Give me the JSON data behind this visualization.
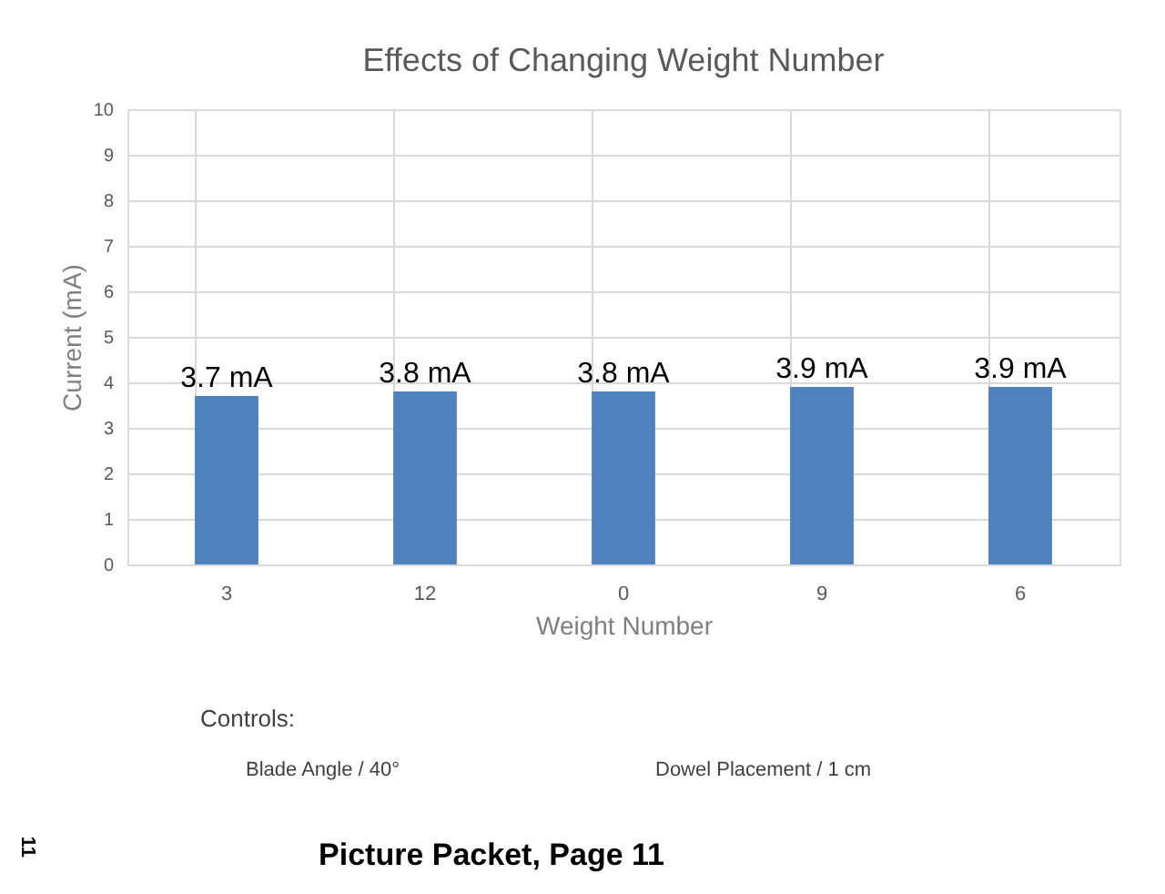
{
  "chart_data": {
    "type": "bar",
    "title": "Effects of Changing Weight Number",
    "xlabel": "Weight Number",
    "ylabel": "Current (mA)",
    "categories": [
      "3",
      "12",
      "0",
      "9",
      "6"
    ],
    "values": [
      3.7,
      3.8,
      3.8,
      3.9,
      3.9
    ],
    "value_labels": [
      "3.7 mA",
      "3.8 mA",
      "3.8 mA",
      "3.9 mA",
      "3.9 mA"
    ],
    "color": "#4f81bd",
    "ylim": [
      0,
      10
    ],
    "yticks": [
      0,
      1,
      2,
      3,
      4,
      5,
      6,
      7,
      8,
      9,
      10
    ],
    "grid": true,
    "annotations": [
      "Controls:",
      "Blade Angle  /  40°",
      "Dowel Placement  /  1 cm",
      "11",
      "Picture Packet, Page 11"
    ]
  }
}
